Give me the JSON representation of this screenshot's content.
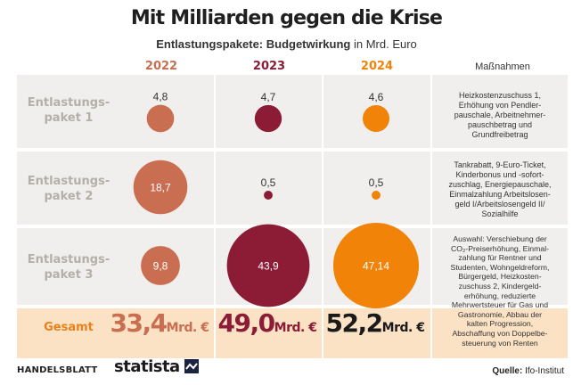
{
  "title": "Mit Milliarden gegen die Krise",
  "subtitle": {
    "bold": "Entlastungspakete: Budgetwirkung",
    "rest": " in Mrd. Euro"
  },
  "columns": [
    {
      "label": "2022",
      "color": "#c96e50"
    },
    {
      "label": "2023",
      "color": "#8c1b35"
    },
    {
      "label": "2024",
      "color": "#f08308"
    }
  ],
  "measures_header": "Maßnahmen",
  "rows": [
    {
      "label_lines": [
        "Entlastungs-",
        "paket 1"
      ],
      "measures": [
        "Heizkostenzuschuss 1,",
        "Erhöhung von Pendler-",
        "pauschale, Arbeitnehmer-",
        "pauschbetrag und",
        "Grundfreibetrag"
      ]
    },
    {
      "label_lines": [
        "Entlastungs-",
        "paket 2"
      ],
      "measures": [
        "Tankrabatt, 9-Euro-Ticket,",
        "Kinderbonus und -sofort-",
        "zuschlag, Energiepauschale,",
        "Einmalzahlung Arbeitslosen-",
        "geld I/Arbeitslosengeld II/",
        "Sozialhilfe"
      ]
    },
    {
      "label_lines": [
        "Entlastungs-",
        "paket 3"
      ],
      "measures": [
        "Auswahl: Verschiebung der",
        "CO₂-Preiserhöhung, Einmal-",
        "zahlung für Rentner und",
        "Studenten, Wohngeldreform,",
        "Bürgergeld, Heizkosten-",
        "zuschuss 2, Kindergeld-",
        "erhöhung, reduzierte",
        "Mehrwertsteuer für Gas und",
        "Gastronomie, Abbau der",
        "kalten Progression,",
        "Abschaffung von Doppelbe-",
        "steuerung von Renten"
      ]
    }
  ],
  "chart_data": {
    "type": "bubble-table",
    "title": "Mit Milliarden gegen die Krise",
    "subtitle": "Entlastungspakete: Budgetwirkung in Mrd. Euro",
    "categories": [
      "Entlastungspaket 1",
      "Entlastungspaket 2",
      "Entlastungspaket 3"
    ],
    "series": [
      {
        "name": "2022",
        "values": [
          4.8,
          18.7,
          9.8
        ],
        "labels": [
          "4,8",
          "18,7",
          "9,8"
        ]
      },
      {
        "name": "2023",
        "values": [
          4.7,
          0.5,
          43.9
        ],
        "labels": [
          "4,7",
          "0,5",
          "43,9"
        ]
      },
      {
        "name": "2024",
        "values": [
          4.6,
          0.5,
          47.14
        ],
        "labels": [
          "4,6",
          "0,5",
          "47,14"
        ]
      }
    ],
    "label_inside": [
      [
        false,
        true,
        true
      ],
      [
        false,
        false,
        true
      ],
      [
        false,
        false,
        true
      ]
    ]
  },
  "totals": {
    "label": "Gesamt",
    "values": [
      {
        "num": "33,4",
        "unit": "Mrd. €",
        "color": "#c96e50"
      },
      {
        "num": "49,0",
        "unit": "Mrd. €",
        "color": "#8c1b35"
      },
      {
        "num": "52,2",
        "unit": "Mrd. €",
        "color": "#1a1a1a"
      }
    ]
  },
  "footer": {
    "publisher": "HANDELSBLATT",
    "brand": "statista",
    "source_label": "Quelle:",
    "source": " Ifo-Institut"
  }
}
